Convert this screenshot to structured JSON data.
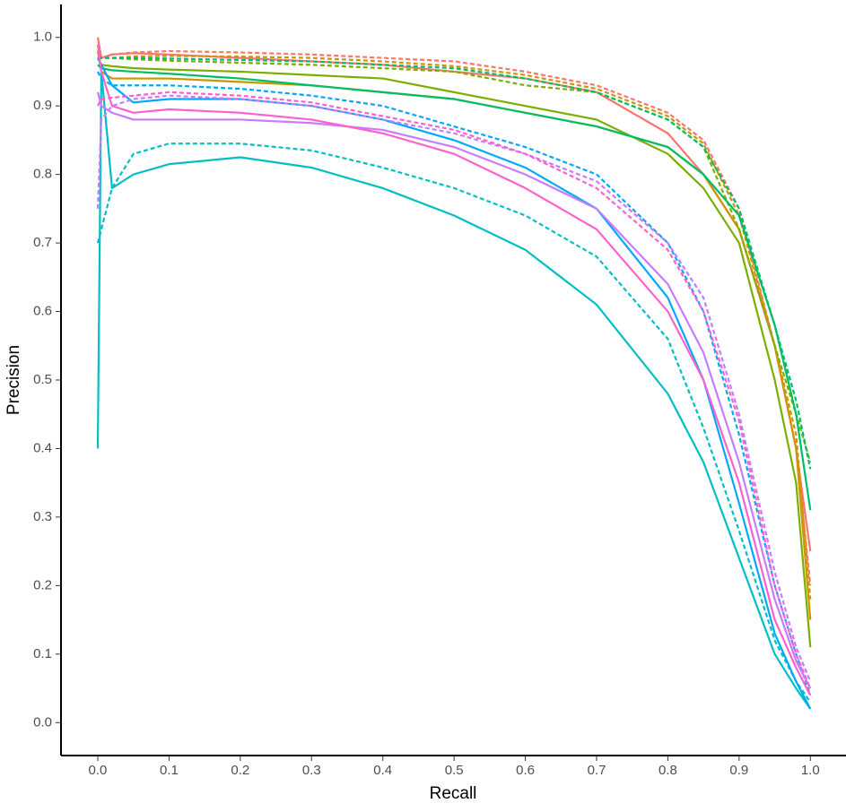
{
  "chart_data": {
    "type": "line",
    "x_label": "Recall",
    "y_label": "Precision",
    "xlim": [
      -0.0516,
      1.05
    ],
    "ylim": [
      -0.048,
      1.048
    ],
    "xticks": [
      {
        "value": 0,
        "label": "0.0"
      },
      0.1,
      0.2,
      0.3,
      0.4,
      0.5,
      0.6,
      0.7,
      0.8,
      0.9,
      {
        "value": 1,
        "label": "1.0"
      }
    ],
    "yticks": [
      {
        "value": 0,
        "label": "0.0"
      },
      0.1,
      0.2,
      0.3,
      0.4,
      0.5,
      0.6,
      0.7,
      0.8,
      0.9,
      {
        "value": 1,
        "label": "1.0"
      }
    ],
    "grid": false,
    "x": [
      0,
      0.005,
      0.02,
      0.05,
      0.1,
      0.2,
      0.3,
      0.4,
      0.5,
      0.6,
      0.7,
      0.8,
      0.85,
      0.9,
      0.95,
      0.98,
      1.0
    ],
    "series": [
      {
        "color": "#F8766D",
        "linestyle": "solid",
        "values": [
          1.0,
          0.97,
          0.975,
          0.977,
          0.975,
          0.97,
          0.965,
          0.96,
          0.95,
          0.94,
          0.92,
          0.86,
          0.8,
          0.72,
          0.55,
          0.4,
          0.25
        ]
      },
      {
        "color": "#F8766D",
        "linestyle": "dashed",
        "values": [
          0.97,
          0.97,
          0.975,
          0.978,
          0.98,
          0.978,
          0.975,
          0.97,
          0.965,
          0.95,
          0.93,
          0.89,
          0.85,
          0.75,
          0.55,
          0.4,
          0.2
        ]
      },
      {
        "color": "#CD9600",
        "linestyle": "solid",
        "values": [
          0.98,
          0.95,
          0.94,
          0.94,
          0.94,
          0.935,
          0.93,
          0.92,
          0.91,
          0.89,
          0.87,
          0.84,
          0.8,
          0.72,
          0.55,
          0.4,
          0.15
        ]
      },
      {
        "color": "#CD9600",
        "linestyle": "dashed",
        "values": [
          0.97,
          0.97,
          0.97,
          0.972,
          0.973,
          0.972,
          0.97,
          0.965,
          0.958,
          0.945,
          0.925,
          0.885,
          0.845,
          0.74,
          0.55,
          0.42,
          0.18
        ]
      },
      {
        "color": "#7CAE00",
        "linestyle": "solid",
        "values": [
          0.97,
          0.96,
          0.958,
          0.955,
          0.953,
          0.95,
          0.945,
          0.94,
          0.92,
          0.9,
          0.88,
          0.83,
          0.78,
          0.7,
          0.5,
          0.35,
          0.11
        ]
      },
      {
        "color": "#7CAE00",
        "linestyle": "dashed",
        "values": [
          0.97,
          0.97,
          0.97,
          0.968,
          0.966,
          0.963,
          0.96,
          0.955,
          0.95,
          0.93,
          0.92,
          0.88,
          0.84,
          0.72,
          0.55,
          0.45,
          0.38
        ]
      },
      {
        "color": "#00BE67",
        "linestyle": "solid",
        "values": [
          0.96,
          0.955,
          0.952,
          0.95,
          0.947,
          0.94,
          0.93,
          0.92,
          0.91,
          0.89,
          0.87,
          0.84,
          0.8,
          0.74,
          0.58,
          0.45,
          0.31
        ]
      },
      {
        "color": "#00BE67",
        "linestyle": "dashed",
        "values": [
          0.97,
          0.97,
          0.97,
          0.97,
          0.969,
          0.967,
          0.965,
          0.96,
          0.955,
          0.94,
          0.92,
          0.88,
          0.84,
          0.75,
          0.58,
          0.47,
          0.37
        ]
      },
      {
        "color": "#00BFC4",
        "linestyle": "solid",
        "values": [
          0.4,
          0.95,
          0.78,
          0.8,
          0.815,
          0.825,
          0.81,
          0.78,
          0.74,
          0.69,
          0.61,
          0.48,
          0.38,
          0.24,
          0.1,
          0.05,
          0.02
        ]
      },
      {
        "color": "#00BFC4",
        "linestyle": "dashed",
        "values": [
          0.7,
          0.72,
          0.78,
          0.83,
          0.845,
          0.845,
          0.835,
          0.81,
          0.78,
          0.74,
          0.68,
          0.56,
          0.43,
          0.28,
          0.12,
          0.06,
          0.03
        ]
      },
      {
        "color": "#00A9FF",
        "linestyle": "solid",
        "values": [
          0.97,
          0.96,
          0.93,
          0.905,
          0.91,
          0.91,
          0.9,
          0.88,
          0.85,
          0.81,
          0.75,
          0.62,
          0.5,
          0.32,
          0.13,
          0.06,
          0.02
        ]
      },
      {
        "color": "#00A9FF",
        "linestyle": "dashed",
        "values": [
          0.95,
          0.94,
          0.93,
          0.93,
          0.93,
          0.925,
          0.915,
          0.9,
          0.87,
          0.84,
          0.8,
          0.7,
          0.6,
          0.42,
          0.2,
          0.1,
          0.04
        ]
      },
      {
        "color": "#C77CFF",
        "linestyle": "solid",
        "values": [
          0.92,
          0.9,
          0.89,
          0.88,
          0.88,
          0.88,
          0.875,
          0.865,
          0.84,
          0.8,
          0.75,
          0.64,
          0.54,
          0.38,
          0.18,
          0.09,
          0.05
        ]
      },
      {
        "color": "#C77CFF",
        "linestyle": "dashed",
        "values": [
          0.75,
          0.88,
          0.9,
          0.91,
          0.915,
          0.91,
          0.9,
          0.88,
          0.86,
          0.83,
          0.79,
          0.7,
          0.62,
          0.45,
          0.22,
          0.11,
          0.06
        ]
      },
      {
        "color": "#FF61CC",
        "linestyle": "solid",
        "values": [
          0.99,
          0.95,
          0.9,
          0.89,
          0.895,
          0.89,
          0.88,
          0.86,
          0.83,
          0.78,
          0.72,
          0.6,
          0.5,
          0.35,
          0.15,
          0.08,
          0.04
        ]
      },
      {
        "color": "#FF61CC",
        "linestyle": "dashed",
        "values": [
          0.9,
          0.91,
          0.912,
          0.915,
          0.92,
          0.915,
          0.905,
          0.885,
          0.865,
          0.83,
          0.78,
          0.69,
          0.6,
          0.44,
          0.2,
          0.1,
          0.05
        ]
      }
    ]
  }
}
